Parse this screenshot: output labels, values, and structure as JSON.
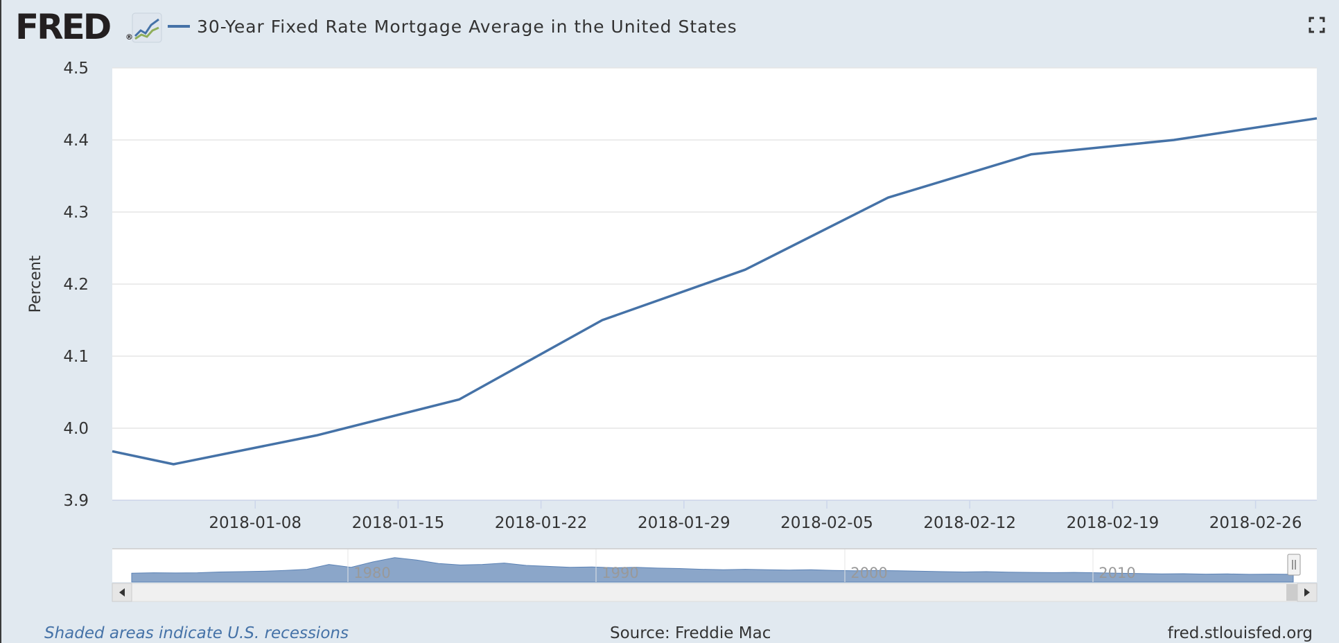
{
  "header": {
    "logo_text": "FRED",
    "logo_mark": "®",
    "title": "30-Year Fixed Rate Mortgage Average in the United States"
  },
  "colors": {
    "series": "#4572a7",
    "background": "#e1e9f0",
    "plot": "#ffffff",
    "navigator_fill": "#8ba6c9"
  },
  "chart_data": {
    "type": "line",
    "title": "30-Year Fixed Rate Mortgage Average in the United States",
    "ylabel": "Percent",
    "xlabel": "",
    "ylim": [
      3.9,
      4.5
    ],
    "xlim": [
      "2018-01-01",
      "2018-03-01"
    ],
    "yticks": [
      "3.9",
      "4.0",
      "4.1",
      "4.2",
      "4.3",
      "4.4",
      "4.5"
    ],
    "xticks": [
      "2018-01-08",
      "2018-01-15",
      "2018-01-22",
      "2018-01-29",
      "2018-02-05",
      "2018-02-12",
      "2018-02-19",
      "2018-02-26"
    ],
    "grid": true,
    "series": [
      {
        "name": "30-Year Fixed Rate Mortgage Average in the United States",
        "x": [
          "2018-01-01",
          "2018-01-04",
          "2018-01-11",
          "2018-01-18",
          "2018-01-25",
          "2018-02-01",
          "2018-02-08",
          "2018-02-15",
          "2018-02-22",
          "2018-03-01"
        ],
        "values": [
          3.968,
          3.95,
          3.99,
          4.04,
          4.15,
          4.22,
          4.32,
          4.38,
          4.4,
          4.43
        ]
      }
    ],
    "navigator": {
      "labels": [
        "1980",
        "1990",
        "2000",
        "2010"
      ]
    }
  },
  "footer": {
    "recession_note": "Shaded areas indicate U.S. recessions",
    "source": "Source: Freddie Mac",
    "site": "fred.stlouisfed.org"
  }
}
